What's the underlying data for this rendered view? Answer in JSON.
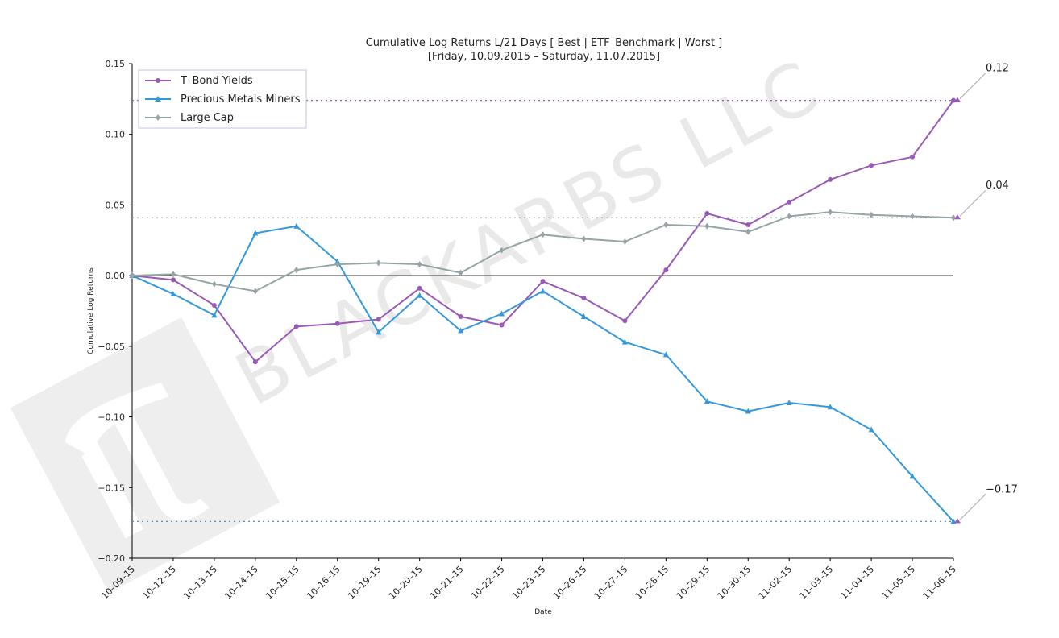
{
  "chart_data": {
    "type": "line",
    "title": "Cumulative Log Returns L/21 Days [ Best | ETF_Benchmark | Worst ]",
    "subtitle": "[Friday, 10.09.2015 – Saturday, 11.07.2015]",
    "xlabel": "Date",
    "ylabel": "Cumulative Log Returns",
    "ylim": [
      -0.2,
      0.15
    ],
    "yticks": [
      "0.15",
      "0.10",
      "0.05",
      "0.00",
      "−0.05",
      "−0.10",
      "−0.15",
      "−0.20"
    ],
    "categories": [
      "10–09–15",
      "10–12–15",
      "10–13–15",
      "10–14–15",
      "10–15–15",
      "10–16–15",
      "10–19–15",
      "10–20–15",
      "10–21–15",
      "10–22–15",
      "10–23–15",
      "10–26–15",
      "10–27–15",
      "10–28–15",
      "10–29–15",
      "10–30–15",
      "11–02–15",
      "11–03–15",
      "11–04–15",
      "11–05–15",
      "11–06–15"
    ],
    "legend_position": "top-left",
    "series": [
      {
        "name": "T–Bond Yields",
        "color": "#9b59b6",
        "marker": "circle",
        "values": [
          0.0,
          -0.003,
          -0.021,
          -0.061,
          -0.036,
          -0.034,
          -0.031,
          -0.009,
          -0.029,
          -0.035,
          -0.004,
          -0.016,
          -0.032,
          0.004,
          0.044,
          0.036,
          0.052,
          0.068,
          0.078,
          0.084,
          0.124
        ]
      },
      {
        "name": "Precious Metals Miners",
        "color": "#3498db",
        "marker": "triangle",
        "values": [
          0.0,
          -0.013,
          -0.028,
          0.03,
          0.035,
          0.01,
          -0.04,
          -0.014,
          -0.039,
          -0.027,
          -0.011,
          -0.029,
          -0.047,
          -0.056,
          -0.089,
          -0.096,
          -0.09,
          -0.093,
          -0.109,
          -0.142,
          -0.174
        ]
      },
      {
        "name": "Large Cap",
        "color": "#95a5a6",
        "marker": "diamond",
        "values": [
          0.0,
          0.001,
          -0.006,
          -0.011,
          0.004,
          0.008,
          0.009,
          0.008,
          0.002,
          0.018,
          0.029,
          0.026,
          0.024,
          0.036,
          0.035,
          0.031,
          0.042,
          0.045,
          0.043,
          0.042,
          0.041
        ]
      }
    ],
    "zero_line": 0.0,
    "reference_lines": [
      {
        "value": 0.124,
        "color": "#9b59b6"
      },
      {
        "value": 0.041,
        "color": "#95a5a6"
      },
      {
        "value": -0.174,
        "color": "#3498db"
      }
    ],
    "annotations": [
      {
        "text": "0.12",
        "value": 0.124,
        "color": "#9b59b6"
      },
      {
        "text": "0.04",
        "value": 0.041,
        "color": "#9b59b6"
      },
      {
        "text": "−0.17",
        "value": -0.174,
        "color": "#9b59b6"
      }
    ]
  },
  "watermark": {
    "text": "BLACKARBS LLC"
  }
}
